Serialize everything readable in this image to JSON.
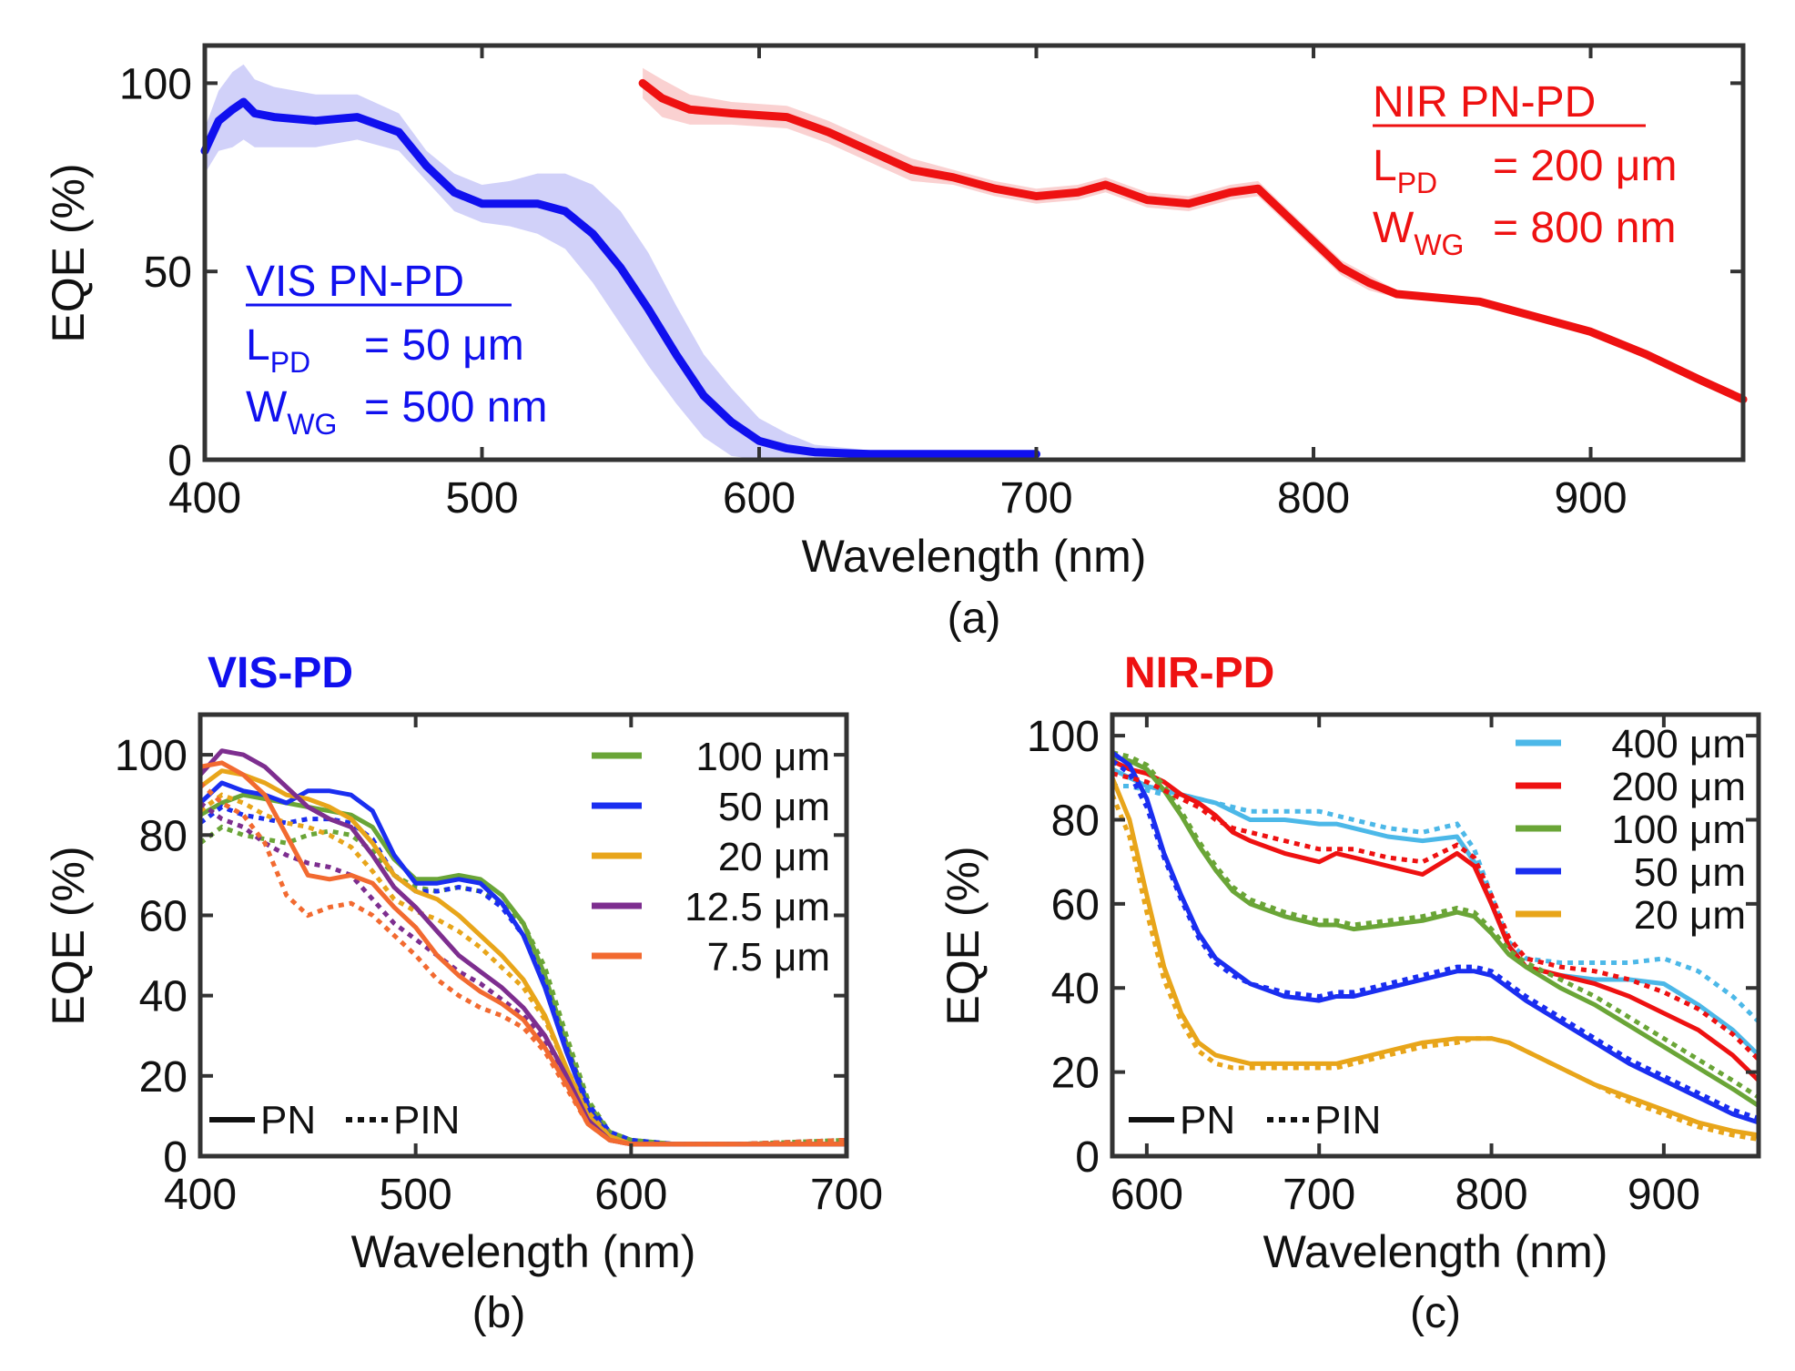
{
  "figure": {
    "panel_labels": [
      "(a)",
      "(b)",
      "(c)"
    ]
  },
  "chart_data": [
    {
      "id": "a",
      "type": "line",
      "panel_label": "(a)",
      "xlabel": "Wavelength (nm)",
      "ylabel": "EQE (%)",
      "xlim": [
        400,
        955
      ],
      "ylim": [
        0,
        110
      ],
      "xticks": [
        400,
        500,
        600,
        700,
        800,
        900
      ],
      "yticks": [
        0,
        50,
        100
      ],
      "series": [
        {
          "name": "VIS PN-PD",
          "color": "#1010ee",
          "band_color": "#9a9af2",
          "annotation": {
            "title": "VIS PN-PD",
            "lpd": "L",
            "lpd_sub": "PD",
            "lpd_val": "= 50 μm",
            "wwg": "W",
            "wwg_sub": "WG",
            "wwg_val": "= 500 nm"
          },
          "x": [
            400,
            405,
            410,
            414,
            418,
            425,
            440,
            455,
            470,
            480,
            490,
            500,
            510,
            520,
            530,
            540,
            550,
            560,
            570,
            580,
            590,
            600,
            610,
            620,
            640,
            660,
            680,
            700
          ],
          "y": [
            82,
            90,
            93,
            95,
            92,
            91,
            90,
            91,
            87,
            78,
            71,
            68,
            68,
            68,
            66,
            60,
            51,
            40,
            28,
            17,
            10,
            5,
            3,
            2,
            1.5,
            1.5,
            1.5,
            1.5
          ],
          "band": [
            6,
            8,
            10,
            10,
            9,
            8,
            7,
            6,
            5,
            4,
            5,
            5,
            6,
            8,
            10,
            13,
            15,
            15,
            13,
            11,
            9,
            6,
            4,
            2,
            1,
            1,
            1,
            1
          ]
        },
        {
          "name": "NIR PN-PD",
          "color": "#ee1111",
          "band_color": "#f59a9a",
          "annotation": {
            "title": "NIR PN-PD",
            "lpd": "L",
            "lpd_sub": "PD",
            "lpd_val": "= 200 μm",
            "wwg": "W",
            "wwg_sub": "WG",
            "wwg_val": "= 800 nm"
          },
          "x": [
            558,
            565,
            575,
            590,
            610,
            625,
            640,
            655,
            670,
            685,
            700,
            715,
            725,
            740,
            755,
            770,
            780,
            790,
            800,
            810,
            820,
            830,
            845,
            860,
            880,
            900,
            920,
            940,
            955
          ],
          "y": [
            100,
            96,
            93,
            92,
            91,
            87,
            82,
            77,
            75,
            72,
            70,
            71,
            73,
            69,
            68,
            71,
            72,
            65,
            58,
            51,
            47,
            44,
            43,
            42,
            38,
            34,
            28,
            21,
            16
          ],
          "band": [
            4,
            5,
            4,
            3,
            3,
            3,
            3,
            3,
            2,
            2,
            2,
            2,
            2,
            2,
            2,
            2,
            2,
            2,
            2,
            2,
            2,
            1,
            1,
            1,
            1,
            1,
            1,
            1,
            1
          ]
        }
      ]
    },
    {
      "id": "b",
      "type": "line",
      "panel_label": "(b)",
      "title": "VIS-PD",
      "title_color": "#1010ee",
      "xlabel": "Wavelength (nm)",
      "ylabel": "EQE (%)",
      "xlim": [
        400,
        700
      ],
      "ylim": [
        0,
        110
      ],
      "xticks": [
        400,
        500,
        600,
        700
      ],
      "yticks": [
        0,
        20,
        40,
        60,
        80,
        100
      ],
      "style_legend": {
        "solid": "PN",
        "dotted": "PIN"
      },
      "x": [
        400,
        410,
        420,
        430,
        440,
        450,
        460,
        470,
        480,
        490,
        500,
        510,
        520,
        530,
        540,
        550,
        560,
        570,
        580,
        590,
        600,
        620,
        650,
        700
      ],
      "series": [
        {
          "name": "100 μm",
          "color": "#6aa537",
          "pn": [
            85,
            88,
            90,
            89,
            88,
            87,
            86,
            85,
            82,
            74,
            69,
            69,
            70,
            69,
            65,
            58,
            45,
            28,
            13,
            6,
            4,
            3,
            3,
            3
          ],
          "pin": [
            78,
            82,
            80,
            79,
            78,
            80,
            81,
            80,
            76,
            70,
            67,
            66,
            67,
            66,
            63,
            58,
            47,
            30,
            14,
            6,
            4,
            3,
            3,
            4
          ]
        },
        {
          "name": "50 μm",
          "color": "#1a2ef0",
          "pn": [
            88,
            93,
            91,
            90,
            88,
            91,
            91,
            90,
            86,
            75,
            68,
            68,
            69,
            68,
            63,
            55,
            42,
            26,
            12,
            5,
            3,
            3,
            3,
            3
          ],
          "pin": [
            83,
            87,
            85,
            84,
            83,
            84,
            84,
            83,
            79,
            70,
            66,
            66,
            67,
            66,
            62,
            55,
            43,
            27,
            13,
            6,
            4,
            3,
            3,
            4
          ]
        },
        {
          "name": "20 μm",
          "color": "#e8a51a",
          "pn": [
            92,
            96,
            95,
            93,
            90,
            89,
            87,
            84,
            78,
            70,
            66,
            64,
            60,
            55,
            50,
            44,
            35,
            22,
            10,
            5,
            3,
            3,
            3,
            3
          ],
          "pin": [
            86,
            90,
            88,
            85,
            83,
            82,
            80,
            77,
            71,
            64,
            61,
            59,
            56,
            52,
            47,
            42,
            34,
            22,
            11,
            5,
            3,
            3,
            3,
            4
          ]
        },
        {
          "name": "12.5 μm",
          "color": "#7d2e8f",
          "pn": [
            95,
            101,
            100,
            97,
            92,
            87,
            84,
            82,
            75,
            67,
            62,
            56,
            50,
            46,
            42,
            37,
            30,
            20,
            9,
            4,
            3,
            3,
            3,
            3
          ],
          "pin": [
            88,
            84,
            82,
            78,
            75,
            73,
            72,
            70,
            64,
            58,
            54,
            50,
            46,
            43,
            39,
            35,
            29,
            19,
            9,
            4,
            3,
            3,
            3,
            4
          ]
        },
        {
          "name": "7.5 μm",
          "color": "#f26a30",
          "pn": [
            97,
            98,
            95,
            90,
            80,
            70,
            69,
            70,
            68,
            62,
            57,
            50,
            45,
            41,
            38,
            34,
            27,
            18,
            8,
            4,
            3,
            3,
            3,
            3
          ],
          "pin": [
            93,
            88,
            85,
            78,
            65,
            60,
            62,
            63,
            60,
            55,
            50,
            44,
            40,
            37,
            35,
            32,
            26,
            17,
            8,
            4,
            3,
            3,
            3,
            4
          ]
        }
      ]
    },
    {
      "id": "c",
      "type": "line",
      "panel_label": "(c)",
      "title": "NIR-PD",
      "title_color": "#ee1111",
      "xlabel": "Wavelength (nm)",
      "ylabel": "EQE (%)",
      "xlim": [
        580,
        955
      ],
      "ylim": [
        0,
        105
      ],
      "xticks": [
        600,
        700,
        800,
        900
      ],
      "yticks": [
        0,
        20,
        40,
        60,
        80,
        100
      ],
      "style_legend": {
        "solid": "PN",
        "dotted": "PIN"
      },
      "x": [
        580,
        590,
        600,
        610,
        620,
        630,
        640,
        650,
        660,
        680,
        700,
        710,
        720,
        740,
        760,
        780,
        790,
        800,
        810,
        820,
        840,
        860,
        880,
        900,
        920,
        940,
        955
      ],
      "series": [
        {
          "name": "400 μm",
          "color": "#4cb8e8",
          "pn": [
            92,
            90,
            88,
            87,
            86,
            85,
            84,
            82,
            80,
            80,
            79,
            79,
            78,
            76,
            75,
            76,
            70,
            60,
            50,
            45,
            43,
            42,
            42,
            41,
            36,
            30,
            24
          ],
          "pin": [
            88,
            88,
            87,
            86,
            86,
            85,
            84,
            83,
            82,
            82,
            82,
            81,
            80,
            78,
            77,
            79,
            73,
            62,
            51,
            47,
            46,
            46,
            46,
            47,
            44,
            38,
            32
          ]
        },
        {
          "name": "200 μm",
          "color": "#ee1111",
          "pn": [
            94,
            92,
            91,
            89,
            86,
            84,
            81,
            77,
            75,
            72,
            70,
            72,
            71,
            69,
            67,
            72,
            69,
            60,
            50,
            45,
            43,
            41,
            38,
            34,
            30,
            24,
            18
          ]
        },
        {
          "name": "100 μm",
          "color": "#6aa537",
          "pn": [
            95,
            94,
            92,
            87,
            81,
            74,
            68,
            63,
            60,
            57,
            55,
            55,
            54,
            55,
            56,
            58,
            57,
            53,
            48,
            45,
            40,
            36,
            31,
            26,
            21,
            16,
            12
          ],
          "pin": [
            96,
            95,
            93,
            88,
            82,
            75,
            69,
            64,
            61,
            58,
            56,
            56,
            55,
            56,
            57,
            59,
            58,
            54,
            49,
            46,
            42,
            38,
            33,
            28,
            23,
            18,
            14
          ]
        },
        {
          "name": "50 μm",
          "color": "#1a2ef0",
          "pn": [
            96,
            93,
            85,
            72,
            62,
            53,
            47,
            44,
            41,
            38,
            37,
            38,
            38,
            40,
            42,
            44,
            44,
            43,
            40,
            37,
            32,
            27,
            22,
            18,
            14,
            10,
            8
          ],
          "pin": [
            94,
            91,
            83,
            71,
            61,
            52,
            46,
            43,
            41,
            39,
            38,
            39,
            39,
            41,
            43,
            45,
            45,
            44,
            41,
            38,
            33,
            28,
            23,
            19,
            15,
            11,
            9
          ]
        },
        {
          "name": "20 μm",
          "color": "#e8a51a",
          "pn": [
            90,
            80,
            62,
            45,
            34,
            27,
            24,
            23,
            22,
            22,
            22,
            22,
            23,
            25,
            27,
            28,
            28,
            28,
            27,
            25,
            21,
            17,
            14,
            11,
            8,
            6,
            5
          ],
          "pin": [
            86,
            76,
            58,
            42,
            32,
            25,
            22,
            21,
            21,
            21,
            21,
            21,
            22,
            24,
            26,
            27,
            28,
            28,
            27,
            25,
            21,
            17,
            13,
            10,
            7,
            5,
            4
          ]
        }
      ],
      "extra_dotted": {
        "name": "200 μm",
        "color": "#ee1111",
        "pin": [
          91,
          90,
          89,
          87,
          85,
          83,
          80,
          78,
          77,
          75,
          73,
          73,
          73,
          71,
          70,
          74,
          71,
          62,
          52,
          47,
          45,
          44,
          42,
          39,
          35,
          29,
          23
        ]
      }
    }
  ]
}
